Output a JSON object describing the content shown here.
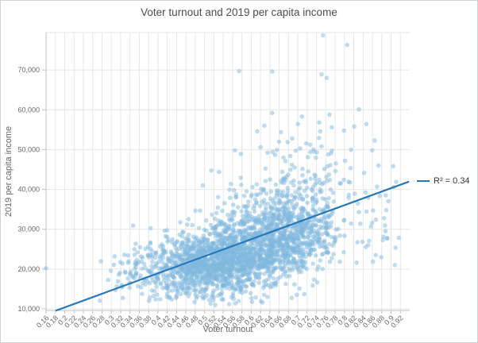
{
  "window": {
    "background": "#ffffff",
    "border_color": "#ccd3d9"
  },
  "chart_data": {
    "type": "scatter",
    "title": "Voter turnout and 2019 per capita income",
    "xlabel": "Voter turnout",
    "ylabel": "2019 per capita income",
    "grid": true,
    "legend": {
      "label": "R² = 0.34",
      "position": "right"
    },
    "x_range": [
      0.16,
      0.94
    ],
    "y_range": [
      9600,
      79400
    ],
    "x_ticks": {
      "values": [
        0.16,
        0.18,
        0.2,
        0.22,
        0.24,
        0.26,
        0.28,
        0.3,
        0.32,
        0.34,
        0.36,
        0.38,
        0.4,
        0.42,
        0.44,
        0.46,
        0.48,
        0.5,
        0.52,
        0.54,
        0.56,
        0.58,
        0.6,
        0.62,
        0.64,
        0.66,
        0.68,
        0.7,
        0.72,
        0.74,
        0.76,
        0.78,
        0.8,
        0.82,
        0.84,
        0.86,
        0.88,
        0.9,
        0.92
      ],
      "labels": [
        "0.16",
        "0.18",
        "0.2",
        "0.22",
        "0.24",
        "0.26",
        "0.28",
        "0.3",
        "0.32",
        "0.34",
        "0.36",
        "0.38",
        "0.4",
        "0.42",
        "0.44",
        "0.46",
        "0.48",
        "0.5",
        "0.52",
        "0.54",
        "0.56",
        "0.58",
        "0.6",
        "0.62",
        "0.64",
        "0.66",
        "0.68",
        "0.7",
        "0.72",
        "0.74",
        "0.76",
        "0.78",
        "0.8",
        "0.82",
        "0.84",
        "0.86",
        "0.88",
        "0.9",
        "0.92"
      ]
    },
    "y_ticks": {
      "values": [
        10000,
        20000,
        30000,
        40000,
        50000,
        60000,
        70000
      ],
      "labels": [
        "10,000",
        "20,000",
        "30,000",
        "40,000",
        "50,000",
        "60,000",
        "70,000"
      ]
    },
    "trend_line": {
      "x1": 0.182,
      "y1": 9600,
      "x2": 0.937,
      "y2": 41900,
      "color": "#2577b9",
      "width": 2.2,
      "r_squared": 0.34
    },
    "point_style": {
      "color": "#7fb8dd",
      "opacity": 0.5,
      "radius": 2.8
    },
    "notable_points": [
      [
        0.16,
        20200
      ],
      [
        0.754,
        78700
      ],
      [
        0.806,
        76300
      ],
      [
        0.574,
        69700
      ],
      [
        0.645,
        69600
      ],
      [
        0.751,
        68900
      ],
      [
        0.762,
        68000
      ],
      [
        0.831,
        60100
      ],
      [
        0.645,
        59200
      ],
      [
        0.768,
        58800
      ],
      [
        0.709,
        58300
      ],
      [
        0.7,
        56400
      ],
      [
        0.746,
        56800
      ],
      [
        0.847,
        56400
      ],
      [
        0.628,
        56000
      ],
      [
        0.773,
        55600
      ],
      [
        0.821,
        55800
      ],
      [
        0.799,
        54800
      ],
      [
        0.613,
        54600
      ],
      [
        0.748,
        54600
      ],
      [
        0.664,
        54400
      ],
      [
        0.865,
        52300
      ],
      [
        0.688,
        52800
      ],
      [
        0.678,
        51900
      ],
      [
        0.911,
        41900
      ],
      [
        0.87,
        40700
      ],
      [
        0.908,
        21000
      ],
      [
        0.347,
        30900
      ],
      [
        0.62,
        50600
      ],
      [
        0.655,
        49900
      ],
      [
        0.705,
        50300
      ],
      [
        0.735,
        49500
      ],
      [
        0.565,
        49800
      ],
      [
        0.578,
        48900
      ],
      [
        0.531,
        44400
      ],
      [
        0.496,
        41000
      ]
    ],
    "point_cloud": {
      "seed": 7,
      "clusters": [
        {
          "n": 1600,
          "mx": 0.545,
          "my": 22800,
          "sx": 0.075,
          "sy": 4300,
          "corr": 0.35,
          "clip": [
            0.27,
            0.9,
            10400,
            38000
          ]
        },
        {
          "n": 260,
          "mx": 0.63,
          "my": 32500,
          "sx": 0.06,
          "sy": 3800,
          "corr": 0.2,
          "clip": [
            0.3,
            0.88,
            10400,
            45000
          ]
        },
        {
          "n": 420,
          "mx": 0.705,
          "my": 28500,
          "sx": 0.042,
          "sy": 5200,
          "corr": 0.25,
          "clip": [
            0.3,
            0.92,
            10400,
            46000
          ]
        },
        {
          "n": 85,
          "mx": 0.695,
          "my": 41500,
          "sx": 0.065,
          "sy": 3000,
          "corr": 0.15,
          "clip": [
            0.42,
            0.9,
            36000,
            48500
          ]
        },
        {
          "n": 26,
          "mx": 0.72,
          "my": 49500,
          "sx": 0.055,
          "sy": 2300,
          "corr": 0,
          "clip": [
            0.5,
            0.9,
            46000,
            53800
          ]
        },
        {
          "n": 110,
          "mx": 0.385,
          "my": 20800,
          "sx": 0.05,
          "sy": 3300,
          "corr": 0.3,
          "clip": [
            0.27,
            0.5,
            12000,
            30000
          ]
        },
        {
          "n": 55,
          "mx": 0.55,
          "my": 14800,
          "sx": 0.09,
          "sy": 1700,
          "corr": 0,
          "clip": [
            0.33,
            0.82,
            10400,
            17000
          ]
        },
        {
          "n": 40,
          "mx": 0.865,
          "my": 30000,
          "sx": 0.025,
          "sy": 7500,
          "corr": 0,
          "clip": [
            0.8,
            0.925,
            16000,
            46000
          ]
        }
      ]
    },
    "style": {
      "grid_color": "#e6e6e6",
      "axis_color": "#c0c0c0",
      "tick_label_color": "#666666",
      "title_color": "#4d4d4d"
    }
  }
}
